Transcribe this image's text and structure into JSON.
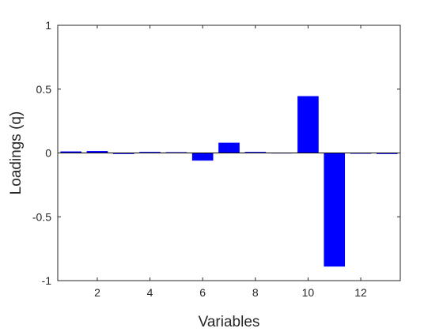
{
  "chart_data": {
    "type": "bar",
    "xlabel": "Variables",
    "ylabel": "Loadings (q)",
    "xlim": [
      0.5,
      13.5
    ],
    "ylim": [
      -1,
      1
    ],
    "categories": [
      1,
      2,
      3,
      4,
      5,
      6,
      7,
      8,
      9,
      10,
      11,
      12,
      13
    ],
    "values": [
      0.012,
      0.015,
      -0.008,
      0.008,
      0.006,
      -0.06,
      0.08,
      0.008,
      -0.004,
      0.445,
      -0.89,
      -0.006,
      -0.008
    ],
    "x_ticks": [
      "2",
      "4",
      "6",
      "8",
      "10",
      "12"
    ],
    "x_tick_values": [
      2,
      4,
      6,
      8,
      10,
      12
    ],
    "y_ticks": [
      "-1",
      "-0.5",
      "0",
      "0.5",
      "1"
    ],
    "y_tick_values": [
      -1,
      -0.5,
      0,
      0.5,
      1
    ],
    "bar_color": "#0000ff",
    "baseline_color": "#000000",
    "axis_color": "#262626",
    "grid": false,
    "box": true
  }
}
